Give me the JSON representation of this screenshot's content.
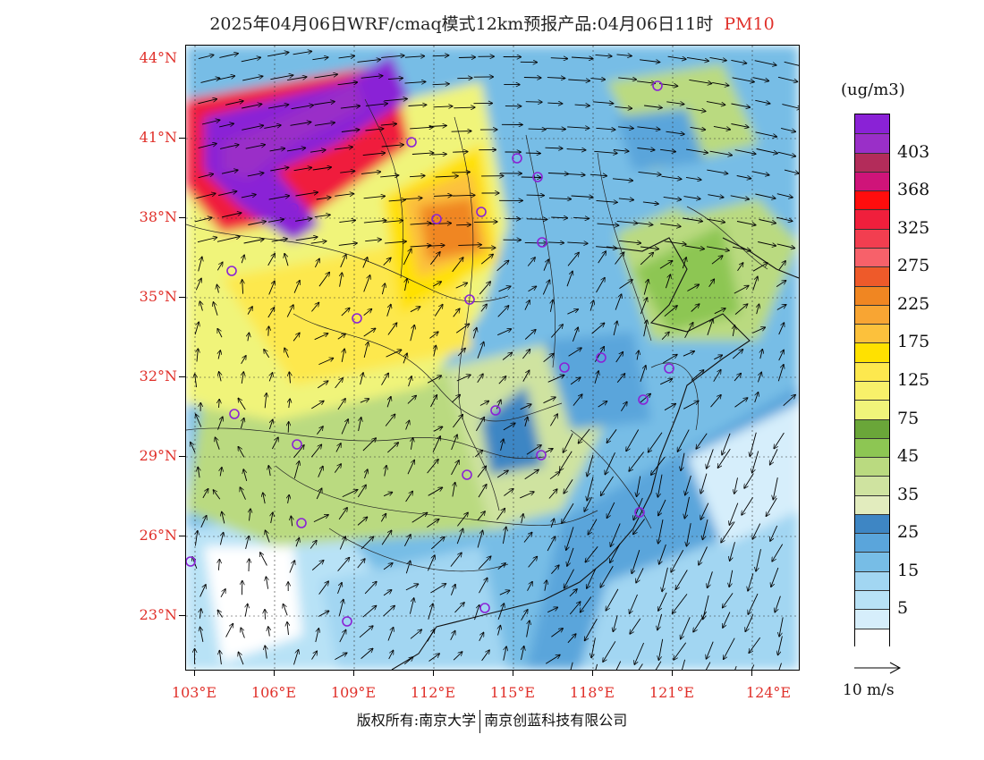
{
  "title": {
    "text": "2025年04月06日WRF/cmaq模式12km预报产品:04月06日11时",
    "species": "PM10"
  },
  "latitude_labels": [
    "44°N",
    "41°N",
    "38°N",
    "35°N",
    "32°N",
    "29°N",
    "26°N",
    "23°N"
  ],
  "longitude_labels": [
    "103°E",
    "106°E",
    "109°E",
    "112°E",
    "115°E",
    "118°E",
    "121°E",
    "124°E"
  ],
  "legend": {
    "unit": "(ug/m3)",
    "levels": [
      {
        "color": "#ffffff"
      },
      {
        "color": "#d6eefb"
      },
      {
        "label": "5",
        "color": "#b8e2f6"
      },
      {
        "color": "#a2d6f2"
      },
      {
        "label": "15",
        "color": "#77bde6"
      },
      {
        "color": "#5aa5db"
      },
      {
        "label": "25",
        "color": "#3e86c4"
      },
      {
        "color": "#e2ecbe"
      },
      {
        "label": "35",
        "color": "#cfe3a0"
      },
      {
        "color": "#bada80"
      },
      {
        "label": "45",
        "color": "#8dc653"
      },
      {
        "color": "#6aa639"
      },
      {
        "label": "75",
        "color": "#f0f47a"
      },
      {
        "color": "#f8f06a"
      },
      {
        "label": "125",
        "color": "#fde84e"
      },
      {
        "color": "#ffe100"
      },
      {
        "label": "175",
        "color": "#fcc13c"
      },
      {
        "color": "#f8a533"
      },
      {
        "label": "225",
        "color": "#f08622"
      },
      {
        "color": "#ee5a2a"
      },
      {
        "label": "275",
        "color": "#f7616a"
      },
      {
        "color": "#f23e50"
      },
      {
        "label": "325",
        "color": "#f01f3c"
      },
      {
        "color": "#ff0d0d"
      },
      {
        "label": "368",
        "color": "#cf1479"
      },
      {
        "color": "#b32c5a"
      },
      {
        "label": "403",
        "color": "#9a2fc8"
      },
      {
        "color": "#8a22d6"
      }
    ]
  },
  "wind_reference": {
    "label": "10 m/s"
  },
  "footer": {
    "copyright": "版权所有:南京大学",
    "company": "南京创蓝科技有限公司"
  }
}
